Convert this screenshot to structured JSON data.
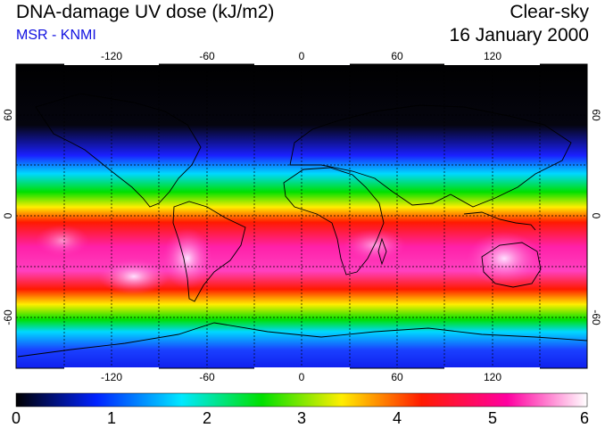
{
  "header": {
    "title": "DNA-damage UV dose (kJ/m2)",
    "subtitle": "MSR - KNMI",
    "condition": "Clear-sky",
    "date": "16 January 2000"
  },
  "map": {
    "longitude_ticks": [
      "-120",
      "-60",
      "0",
      "60",
      "120"
    ],
    "latitude_ticks": [
      "60",
      "0",
      "-60"
    ],
    "lon_values": [
      -120,
      -60,
      0,
      60,
      120
    ],
    "lat_values": [
      60,
      0,
      -60
    ]
  },
  "colorbar": {
    "min": 0,
    "max": 6,
    "labels": [
      "0",
      "1",
      "2",
      "3",
      "4",
      "5",
      "6"
    ],
    "colors": [
      "#000000",
      "#0022ff",
      "#00e8ff",
      "#00e000",
      "#ffee00",
      "#ff1a00",
      "#ff00a0",
      "#ffffff"
    ]
  }
}
